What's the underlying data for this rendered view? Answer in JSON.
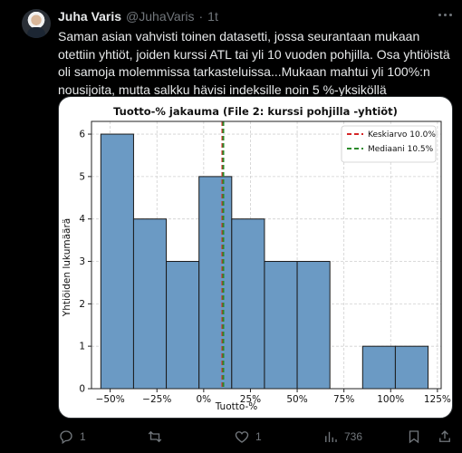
{
  "tweet": {
    "author_name": "Juha Varis",
    "author_handle": "@JuhaVaris",
    "separator": "·",
    "time": "1t",
    "text": "Saman asian vahvisti toinen datasetti, jossa seurantaan mukaan otettiin yhtiöt, joiden kurssi ATL tai yli 10 vuoden pohjilla. Osa yhtiöistä oli samoja molemmissa tarkasteluissa...Mukaan mahtui yli 100%:n nousijoita, mutta salkku hävisi indeksille noin 5 %-yksiköllä"
  },
  "actions": {
    "replies": "1",
    "retweets": "",
    "likes": "1",
    "views": "736"
  },
  "icons": {
    "reply": "reply-icon",
    "retweet": "retweet-icon",
    "like": "heart-icon",
    "views": "views-icon",
    "bookmark": "bookmark-icon",
    "share": "share-icon",
    "more": "more-icon"
  },
  "chart_data": {
    "type": "bar",
    "title": "Tuotto-% jakauma (File 2: kurssi pohjilla -yhtiöt)",
    "xlabel": "Tuotto-%",
    "ylabel": "Yhtiöiden lukumäärä",
    "bins": [
      {
        "start": -55,
        "end": -37.5,
        "count": 6
      },
      {
        "start": -37.5,
        "end": -20,
        "count": 4
      },
      {
        "start": -20,
        "end": -2.5,
        "count": 3
      },
      {
        "start": -2.5,
        "end": 15,
        "count": 5
      },
      {
        "start": 15,
        "end": 32.5,
        "count": 4
      },
      {
        "start": 32.5,
        "end": 50,
        "count": 3
      },
      {
        "start": 50,
        "end": 67.5,
        "count": 3
      },
      {
        "start": 67.5,
        "end": 85,
        "count": 0
      },
      {
        "start": 85,
        "end": 102.5,
        "count": 1
      },
      {
        "start": 102.5,
        "end": 120,
        "count": 1
      }
    ],
    "xlim": [
      -60,
      127
    ],
    "ylim": [
      0,
      6.3
    ],
    "x_ticks": [
      -50,
      -25,
      0,
      25,
      50,
      75,
      100,
      125
    ],
    "x_tick_labels": [
      "−50%",
      "−25%",
      "0%",
      "25%",
      "50%",
      "75%",
      "100%",
      "125%"
    ],
    "y_ticks": [
      0,
      1,
      2,
      3,
      4,
      5,
      6
    ],
    "bar_color": "#6b9ac4",
    "bar_edge_color": "#1a1a1a",
    "grid": true,
    "legend_position": "top-right",
    "lines": [
      {
        "label": "Keskiarvo 10.0%",
        "value": 10.0,
        "color": "#d62728",
        "style": "dashed"
      },
      {
        "label": "Mediaani 10.5%",
        "value": 10.5,
        "color": "#2a8a2a",
        "style": "dashed"
      }
    ]
  }
}
